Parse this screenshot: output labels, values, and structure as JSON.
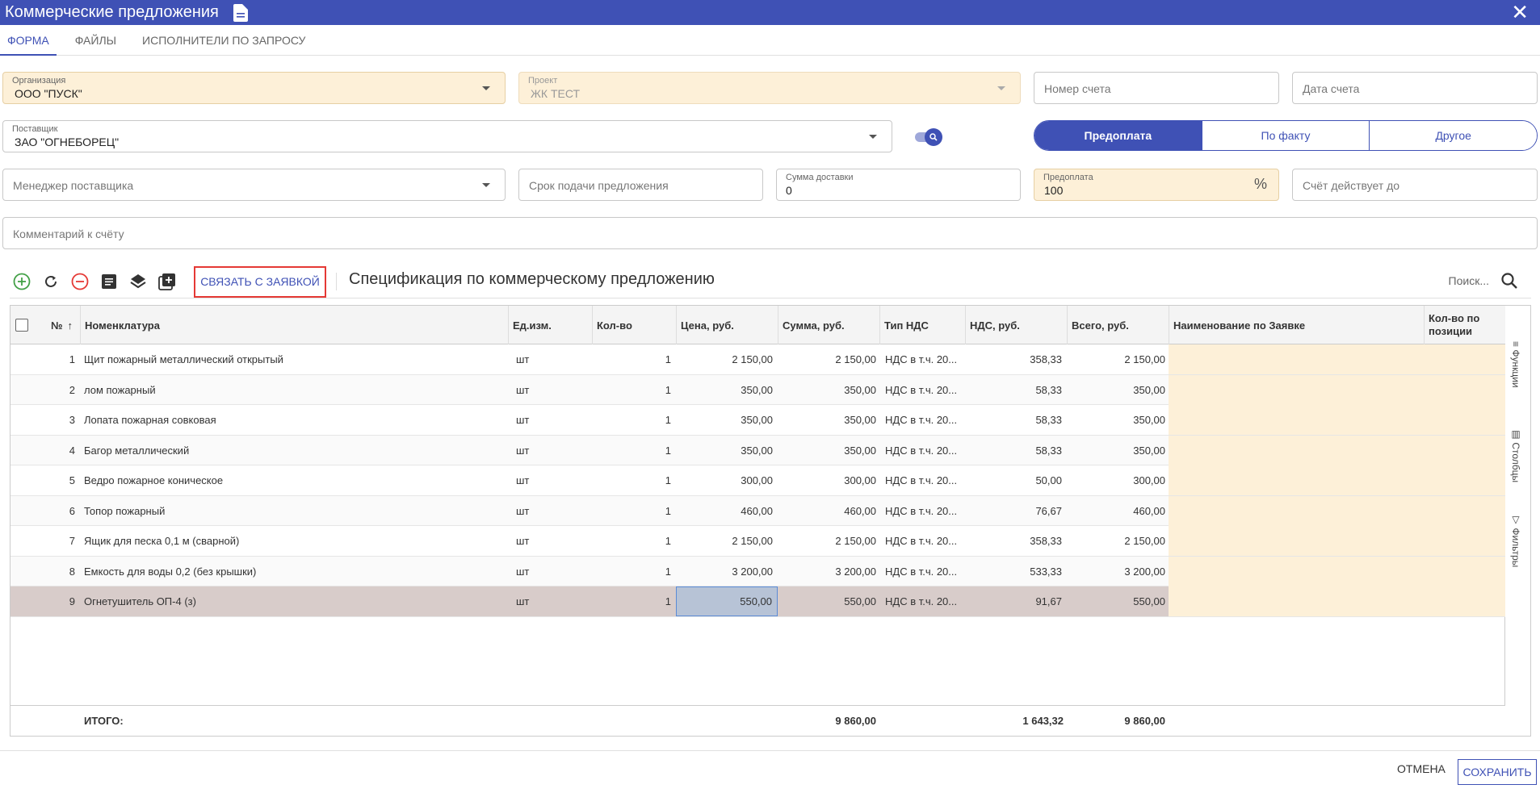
{
  "window": {
    "title": "Коммерческие предложения"
  },
  "tabs": [
    {
      "label": "ФОРМА"
    },
    {
      "label": "ФАЙЛЫ"
    },
    {
      "label": "ИСПОЛНИТЕЛИ ПО ЗАПРОСУ"
    }
  ],
  "form": {
    "organization": {
      "label": "Организация",
      "value": "ООО \"ПУСК\""
    },
    "project": {
      "label": "Проект",
      "value": "ЖК ТЕСТ"
    },
    "invoice_number": {
      "placeholder": "Номер счета"
    },
    "invoice_date": {
      "placeholder": "Дата счета"
    },
    "supplier": {
      "label": "Поставщик",
      "value": "ЗАО \"ОГНЕБОРЕЦ\""
    },
    "payment_types": [
      "Предоплата",
      "По факту",
      "Другое"
    ],
    "payment_selected": "Предоплата",
    "supplier_manager": {
      "placeholder": "Менеджер поставщика"
    },
    "deadline": {
      "placeholder": "Срок подачи предложения"
    },
    "delivery_sum": {
      "label": "Сумма доставки",
      "value": "0"
    },
    "prepayment": {
      "label": "Предоплата",
      "value": "100",
      "unit": "%"
    },
    "valid_until": {
      "placeholder": "Счёт действует до"
    },
    "comment": {
      "placeholder": "Комментарий к счёту"
    }
  },
  "toolbar": {
    "link_button": "СВЯЗАТЬ С ЗАЯВКОЙ",
    "title": "Спецификация по коммерческому предложению",
    "search_placeholder": "Поиск..."
  },
  "table": {
    "columns": {
      "num": "№",
      "name": "Номенклатура",
      "unit": "Ед.изм.",
      "qty": "Кол-во",
      "price": "Цена, руб.",
      "sum": "Сумма, руб.",
      "vat_type": "Тип НДС",
      "vat": "НДС, руб.",
      "total": "Всего, руб.",
      "req_name": "Наименование по Заявке",
      "req_qty": "Кол-во по позиции"
    },
    "rows": [
      {
        "num": "1",
        "name": "Щит пожарный металлический открытый",
        "unit": "шт",
        "qty": "1",
        "price": "2 150,00",
        "sum": "2 150,00",
        "vat_type": "НДС в т.ч. 20...",
        "vat": "358,33",
        "total": "2 150,00"
      },
      {
        "num": "2",
        "name": "лом пожарный",
        "unit": "шт",
        "qty": "1",
        "price": "350,00",
        "sum": "350,00",
        "vat_type": "НДС в т.ч. 20...",
        "vat": "58,33",
        "total": "350,00"
      },
      {
        "num": "3",
        "name": "Лопата пожарная совковая",
        "unit": "шт",
        "qty": "1",
        "price": "350,00",
        "sum": "350,00",
        "vat_type": "НДС в т.ч. 20...",
        "vat": "58,33",
        "total": "350,00"
      },
      {
        "num": "4",
        "name": "Багор металлический",
        "unit": "шт",
        "qty": "1",
        "price": "350,00",
        "sum": "350,00",
        "vat_type": "НДС в т.ч. 20...",
        "vat": "58,33",
        "total": "350,00"
      },
      {
        "num": "5",
        "name": "Ведро пожарное коническое",
        "unit": "шт",
        "qty": "1",
        "price": "300,00",
        "sum": "300,00",
        "vat_type": "НДС в т.ч. 20...",
        "vat": "50,00",
        "total": "300,00"
      },
      {
        "num": "6",
        "name": "Топор пожарный",
        "unit": "шт",
        "qty": "1",
        "price": "460,00",
        "sum": "460,00",
        "vat_type": "НДС в т.ч. 20...",
        "vat": "76,67",
        "total": "460,00"
      },
      {
        "num": "7",
        "name": "Ящик для песка 0,1 м (сварной)",
        "unit": "шт",
        "qty": "1",
        "price": "2 150,00",
        "sum": "2 150,00",
        "vat_type": "НДС в т.ч. 20...",
        "vat": "358,33",
        "total": "2 150,00"
      },
      {
        "num": "8",
        "name": "Емкость для воды 0,2 (без крышки)",
        "unit": "шт",
        "qty": "1",
        "price": "3 200,00",
        "sum": "3 200,00",
        "vat_type": "НДС в т.ч. 20...",
        "vat": "533,33",
        "total": "3 200,00"
      },
      {
        "num": "9",
        "name": "Огнетушитель ОП-4 (з)",
        "unit": "шт",
        "qty": "1",
        "price": "550,00",
        "sum": "550,00",
        "vat_type": "НДС в т.ч. 20...",
        "vat": "91,67",
        "total": "550,00"
      }
    ],
    "totals": {
      "label": "ИТОГО:",
      "sum": "9 860,00",
      "vat": "1 643,32",
      "total": "9 860,00"
    }
  },
  "side_panel": {
    "functions": "Функции",
    "columns": "Столбцы",
    "filters": "Фильтры"
  },
  "footer": {
    "cancel": "ОТМЕНА",
    "save": "СОХРАНИТЬ"
  },
  "colors": {
    "primary": "#3f51b5",
    "required_bg": "#fdf0d8",
    "selected_row": "#d8ccca",
    "danger": "#e53935",
    "add": "#43a047"
  }
}
